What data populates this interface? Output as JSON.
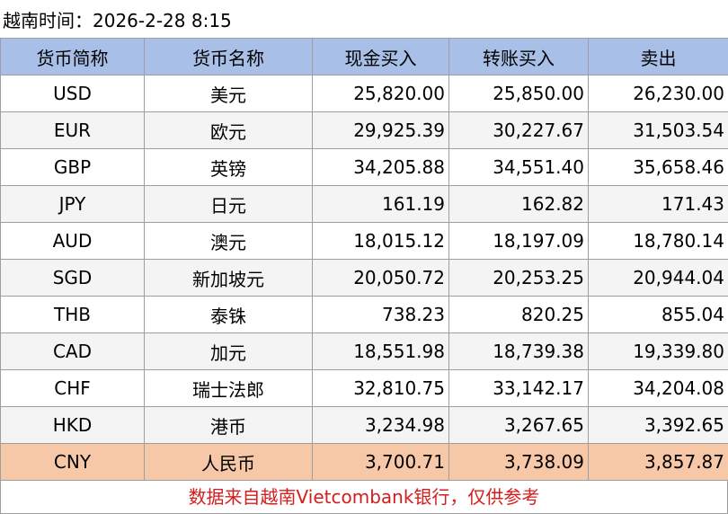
{
  "title": "越南时间：2026-2-28 8:15",
  "headers": [
    "货币简称",
    "货币名称",
    "现金买入",
    "转账买入",
    "卖出"
  ],
  "rows": [
    {
      "code": "USD",
      "name": "美元",
      "cash_buy": "25,820.00",
      "transfer_buy": "25,850.00",
      "sell": "26,230.00"
    },
    {
      "code": "EUR",
      "name": "欧元",
      "cash_buy": "29,925.39",
      "transfer_buy": "30,227.67",
      "sell": "31,503.54"
    },
    {
      "code": "GBP",
      "name": "英镑",
      "cash_buy": "34,205.88",
      "transfer_buy": "34,551.40",
      "sell": "35,658.46"
    },
    {
      "code": "JPY",
      "name": "日元",
      "cash_buy": "161.19",
      "transfer_buy": "162.82",
      "sell": "171.43"
    },
    {
      "code": "AUD",
      "name": "澳元",
      "cash_buy": "18,015.12",
      "transfer_buy": "18,197.09",
      "sell": "18,780.14"
    },
    {
      "code": "SGD",
      "name": "新加坡元",
      "cash_buy": "20,050.72",
      "transfer_buy": "20,253.25",
      "sell": "20,944.04"
    },
    {
      "code": "THB",
      "name": "泰铢",
      "cash_buy": "738.23",
      "transfer_buy": "820.25",
      "sell": "855.04"
    },
    {
      "code": "CAD",
      "name": "加元",
      "cash_buy": "18,551.98",
      "transfer_buy": "18,739.38",
      "sell": "19,339.80"
    },
    {
      "code": "CHF",
      "name": "瑞士法郎",
      "cash_buy": "32,810.75",
      "transfer_buy": "33,142.17",
      "sell": "34,204.08"
    },
    {
      "code": "HKD",
      "name": "港币",
      "cash_buy": "3,234.98",
      "transfer_buy": "3,267.65",
      "sell": "3,392.65"
    },
    {
      "code": "CNY",
      "name": "人民币",
      "cash_buy": "3,700.71",
      "transfer_buy": "3,738.09",
      "sell": "3,857.87"
    }
  ],
  "highlighted_code": "CNY",
  "footer_note": "数据来自越南Vietcombank银行，仅供参考",
  "colors": {
    "header_bg": "#a8c0e8",
    "highlight_bg": "#f7c8a8",
    "footer_text": "#d41d1d"
  }
}
